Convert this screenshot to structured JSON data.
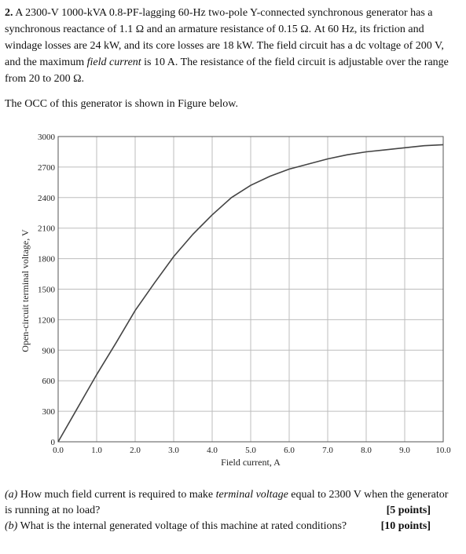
{
  "problem": {
    "number": "2.",
    "parts": [
      "A 2300-V 1000-kVA 0.8-PF-lagging 60-Hz two-pole Y-connected synchronous generator has a synchronous reactance of 1.1 Ω and an armature resistance of 0.15 Ω. At 60 Hz, its friction and windage losses are 24 kW, and its core losses are 18 kW. The field circuit has a dc voltage of 200 V, and the maximum ",
      "field current",
      " is 10 A. The resistance of the field circuit is adjustable over the range from 20 to 200 Ω."
    ]
  },
  "intro": "The OCC of this generator is shown in Figure below.",
  "chart_data": {
    "type": "line",
    "xlabel": "Field current, A",
    "ylabel": "Open-circuit terminal voltage, V",
    "xlim": [
      0,
      10
    ],
    "ylim": [
      0,
      3000
    ],
    "x_ticks": [
      "0.0",
      "1.0",
      "2.0",
      "3.0",
      "4.0",
      "5.0",
      "6.0",
      "7.0",
      "8.0",
      "9.0",
      "10.0"
    ],
    "y_ticks": [
      "0",
      "300",
      "600",
      "900",
      "1200",
      "1500",
      "1800",
      "2100",
      "2400",
      "2700",
      "3000"
    ],
    "grid": true,
    "series": [
      {
        "x": [
          0.0,
          0.5,
          1.0,
          1.5,
          2.0,
          2.5,
          3.0,
          3.5,
          4.0,
          4.5,
          5.0,
          5.5,
          6.0,
          6.5,
          7.0,
          7.5,
          8.0,
          8.5,
          9.0,
          9.5,
          10.0
        ],
        "y": [
          0,
          330,
          660,
          970,
          1290,
          1560,
          1820,
          2040,
          2230,
          2400,
          2520,
          2610,
          2680,
          2730,
          2780,
          2820,
          2850,
          2870,
          2890,
          2910,
          2920
        ]
      }
    ]
  },
  "questions": {
    "a_label": "(a)",
    "a_text_1": " How much field current is required to make ",
    "a_em": "terminal voltage",
    "a_text_2": " equal to 2300 V when the generator is running at no load?",
    "a_points": "[5 points]",
    "b_label": "(b)",
    "b_text": " What is the internal generated voltage of this machine at rated conditions?",
    "b_points": "[10 points]"
  }
}
